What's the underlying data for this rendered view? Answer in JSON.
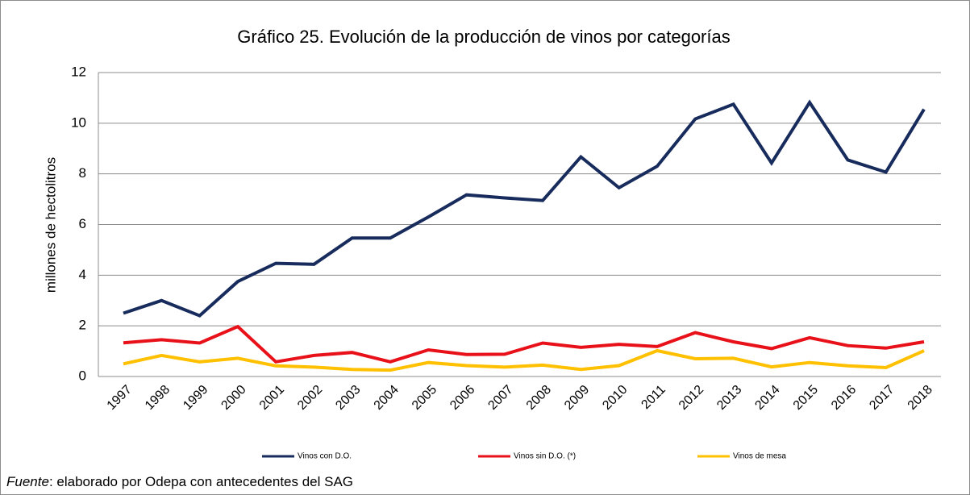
{
  "chart_data": {
    "type": "line",
    "title": "Gráfico 25. Evolución de la producción de vinos por categorías",
    "y_label": "millones de hectolitros",
    "categories": [
      "1997",
      "1998",
      "1999",
      "2000",
      "2001",
      "2002",
      "2003",
      "2004",
      "2005",
      "2006",
      "2007",
      "2008",
      "2009",
      "2010",
      "2011",
      "2012",
      "2013",
      "2014",
      "2015",
      "2016",
      "2017",
      "2018"
    ],
    "series": [
      {
        "name": "Vinos con D.O.",
        "color": "#172b5c",
        "values": [
          2.5,
          3.0,
          2.4,
          3.75,
          4.47,
          4.43,
          5.47,
          5.47,
          6.3,
          7.17,
          7.05,
          6.95,
          8.67,
          7.45,
          8.3,
          10.17,
          10.75,
          8.43,
          10.82,
          8.55,
          8.07,
          10.55
        ]
      },
      {
        "name": "Vinos sin D.O. (*)",
        "color": "#e8111a",
        "values": [
          1.33,
          1.45,
          1.32,
          1.97,
          0.58,
          0.83,
          0.95,
          0.58,
          1.05,
          0.87,
          0.88,
          1.32,
          1.15,
          1.27,
          1.18,
          1.73,
          1.37,
          1.1,
          1.53,
          1.22,
          1.12,
          1.37
        ]
      },
      {
        "name": "Vinos de mesa",
        "color": "#ffc000",
        "values": [
          0.5,
          0.83,
          0.58,
          0.72,
          0.42,
          0.37,
          0.28,
          0.25,
          0.55,
          0.43,
          0.37,
          0.45,
          0.28,
          0.43,
          1.02,
          0.7,
          0.72,
          0.38,
          0.55,
          0.42,
          0.35,
          1.02
        ]
      }
    ],
    "ylim": [
      0,
      12
    ],
    "yticks": [
      0,
      2,
      4,
      6,
      8,
      10,
      12
    ],
    "grid": true,
    "legend": "bottom",
    "source_label": "Fuente",
    "source_text": ": elaborado por Odepa con antecedentes del SAG"
  }
}
